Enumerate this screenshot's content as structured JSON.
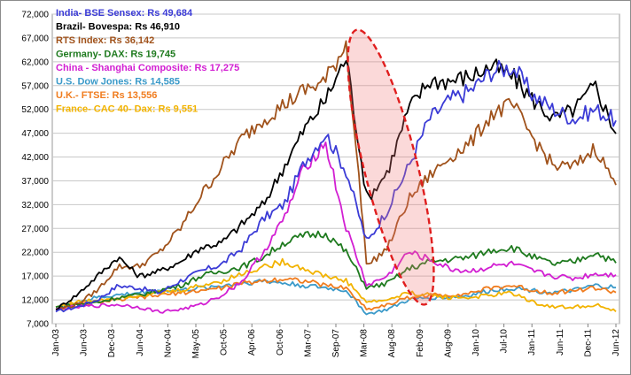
{
  "chart_data": {
    "type": "line",
    "title": "",
    "xlabel": "",
    "ylabel": "",
    "ylim": [
      7000,
      72000
    ],
    "y_ticks": [
      7000,
      12000,
      17000,
      22000,
      27000,
      32000,
      37000,
      42000,
      47000,
      52000,
      57000,
      62000,
      67000,
      72000
    ],
    "y_tick_labels": [
      "7,000",
      "12,000",
      "17,000",
      "22,000",
      "27,000",
      "32,000",
      "37,000",
      "42,000",
      "47,000",
      "52,000",
      "57,000",
      "62,000",
      "67,000",
      "72,000"
    ],
    "x_tick_labels": [
      "Jan-03",
      "Jun-03",
      "Dec-03",
      "Jun-04",
      "Nov-04",
      "May-05",
      "Oct-05",
      "Apr-06",
      "Oct-06",
      "Mar-07",
      "Sep-07",
      "Mar-08",
      "Aug-08",
      "Feb-09",
      "Aug-09",
      "Jan-10",
      "Jul-10",
      "Jan-11",
      "Jun-11",
      "Dec-11",
      "Jun-12"
    ],
    "grid": "horizontal",
    "legend_position": "top-left",
    "annotation": "dashed red ellipse highlighting the 2008 crash",
    "series": [
      {
        "name": "India- BSE Sensex: Rs 49,684",
        "color": "#3b3bd6",
        "values": [
          9500,
          10500,
          12000,
          15000,
          14500,
          13500,
          16000,
          18000,
          19500,
          23000,
          29000,
          32000,
          41000,
          47000,
          39000,
          24000,
          31000,
          40000,
          50000,
          54000,
          56000,
          60000,
          61000,
          55000,
          52000,
          50000,
          52000,
          49684
        ]
      },
      {
        "name": "Brazil- Bovespa: Rs 46,910",
        "color": "#000000",
        "values": [
          10000,
          13000,
          17000,
          21000,
          17000,
          18000,
          20000,
          23000,
          24000,
          28000,
          32000,
          40000,
          48000,
          54000,
          63000,
          33000,
          39000,
          52000,
          58000,
          58000,
          59000,
          61000,
          59000,
          54000,
          50000,
          52000,
          57000,
          46910
        ]
      },
      {
        "name": "RTS Index: Rs 36,142",
        "color": "#a0521b",
        "values": [
          10000,
          11000,
          14000,
          19000,
          19000,
          22000,
          27000,
          34000,
          40000,
          46000,
          50000,
          53000,
          56000,
          58000,
          66000,
          19000,
          23000,
          33000,
          38000,
          42000,
          45000,
          51000,
          53000,
          46000,
          40000,
          40000,
          44000,
          36142
        ]
      },
      {
        "name": "Germany- DAX: Rs 19,745",
        "color": "#1e7a1e",
        "values": [
          10500,
          11000,
          11500,
          12500,
          13000,
          14000,
          15000,
          17000,
          18000,
          19000,
          21000,
          24000,
          25500,
          26000,
          22000,
          14500,
          15500,
          18500,
          20000,
          20500,
          21000,
          22500,
          23000,
          21000,
          19500,
          20000,
          22000,
          19745
        ]
      },
      {
        "name": "China - Shanghai Composite: Rs 17,275",
        "color": "#d21fd2",
        "values": [
          10000,
          10500,
          10800,
          11000,
          10500,
          9500,
          10000,
          11000,
          13000,
          16000,
          22000,
          29000,
          40000,
          45000,
          27000,
          15000,
          17000,
          22000,
          20500,
          18500,
          18000,
          19000,
          19500,
          18000,
          17000,
          16500,
          17500,
          17275
        ]
      },
      {
        "name": "U.S. Dow Jones: Rs 14,585",
        "color": "#3b9ac9",
        "values": [
          10000,
          11500,
          12500,
          13000,
          13500,
          14000,
          14000,
          14500,
          15000,
          15500,
          16000,
          15500,
          15000,
          14500,
          14000,
          9000,
          10000,
          12000,
          12500,
          12500,
          13000,
          14000,
          14500,
          14000,
          13500,
          14000,
          15000,
          14585
        ]
      },
      {
        "name": "U.K.- FTSE: Rs 13,556",
        "color": "#f07c1e",
        "values": [
          10000,
          11000,
          11500,
          12000,
          12500,
          13000,
          13500,
          14000,
          14500,
          15500,
          16000,
          16500,
          16000,
          15000,
          14500,
          10000,
          11000,
          12500,
          13000,
          13000,
          13500,
          14500,
          15000,
          14000,
          13500,
          14000,
          14500,
          13556
        ]
      },
      {
        "name": "France- CAC 40- Dax: Rs 9,551",
        "color": "#f2b300",
        "values": [
          10500,
          11500,
          12000,
          12500,
          13000,
          13500,
          14000,
          15000,
          16000,
          17500,
          19000,
          20000,
          18500,
          17000,
          16000,
          11500,
          12000,
          13500,
          13000,
          12500,
          12500,
          13000,
          13500,
          11500,
          10500,
          10500,
          11000,
          9551
        ]
      }
    ]
  }
}
